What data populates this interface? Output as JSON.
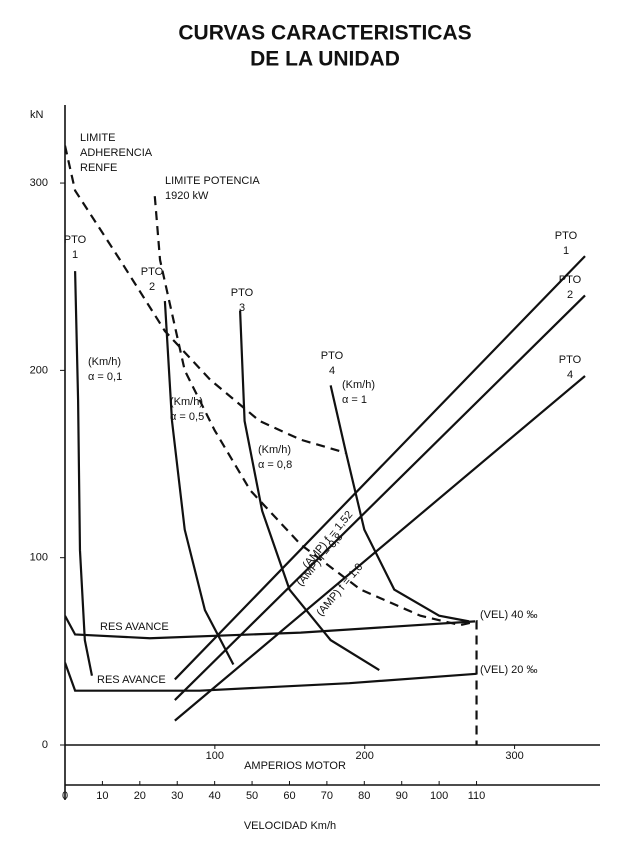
{
  "chart_data": {
    "type": "line",
    "title": [
      "CURVAS CARACTERISTICAS",
      "DE LA UNIDAD"
    ],
    "y_label": "kN",
    "x_label": "VELOCIDAD Km/h",
    "x2_label": "AMPERIOS MOTOR",
    "xlim": [
      0,
      143
    ],
    "ylim": [
      0,
      339
    ],
    "x2lim": [
      0,
      357
    ],
    "yticks": [
      0,
      100,
      200,
      300
    ],
    "xticks": [
      0,
      10,
      20,
      30,
      40,
      50,
      60,
      70,
      80,
      90,
      100,
      110
    ],
    "x2ticks": [
      100,
      200,
      300
    ],
    "series": [
      {
        "name": "LIMITE ADHERENCIA RENFE",
        "color": "#111",
        "dash": true,
        "x": [
          0,
          2.7,
          14.7,
          26.7,
          38.8,
          52,
          63,
          75
        ],
        "values": [
          320,
          296,
          259,
          221,
          195,
          173,
          163,
          156
        ]
      },
      {
        "name": "LIMITE POTENCIA 1920 kW",
        "color": "#111",
        "dash": true,
        "x": [
          24,
          25.4,
          32,
          40,
          49.5,
          63,
          79,
          95,
          105.6,
          110,
          110
        ],
        "values": [
          293,
          259,
          200,
          168,
          136,
          107,
          83,
          69,
          64,
          66,
          0
        ]
      },
      {
        "name": "PTO 1",
        "color": "#111",
        "dash": false,
        "x": [
          2.7,
          3.5,
          4,
          5.3,
          7.2
        ],
        "values": [
          253,
          184,
          104,
          56,
          37
        ]
      },
      {
        "name": "PTO 2",
        "color": "#111",
        "dash": false,
        "x": [
          26.7,
          28.6,
          32,
          37.4,
          45
        ],
        "values": [
          237,
          173,
          115,
          72,
          43
        ]
      },
      {
        "name": "PTO 3",
        "color": "#111",
        "dash": false,
        "x": [
          46.8,
          48,
          52.7,
          60,
          71,
          84
        ],
        "values": [
          232,
          173,
          125,
          83,
          56,
          40
        ]
      },
      {
        "name": "PTO 4",
        "color": "#111",
        "dash": false,
        "x": [
          71,
          75,
          80,
          88,
          100,
          108
        ],
        "values": [
          192,
          157,
          115,
          83,
          69,
          66
        ]
      },
      {
        "name": "RES AVANCE 40",
        "color": "#111",
        "dash": false,
        "x": [
          0,
          2.7,
          22.7,
          63,
          109.6
        ],
        "values": [
          69,
          59,
          57,
          60,
          66
        ]
      },
      {
        "name": "RES AVANCE 20",
        "color": "#111",
        "dash": false,
        "x": [
          0,
          2.7,
          36,
          76,
          110
        ],
        "values": [
          44,
          29,
          29,
          33,
          38
        ]
      },
      {
        "name": "AMP PTO 1",
        "color": "#111",
        "dash": false,
        "axis": "x2",
        "x": [
          73.3,
          347
        ],
        "values": [
          35,
          261
        ]
      },
      {
        "name": "AMP PTO 2",
        "color": "#111",
        "dash": false,
        "axis": "x2",
        "x": [
          73.3,
          347
        ],
        "values": [
          24,
          240
        ]
      },
      {
        "name": "AMP PTO 4",
        "color": "#111",
        "dash": false,
        "axis": "x2",
        "x": [
          73.3,
          347
        ],
        "values": [
          13,
          197
        ]
      }
    ],
    "annotations": [
      [
        "LIMITE",
        "ADHERENCIA",
        "RENFE"
      ],
      [
        "LIMITE POTENCIA",
        "1920 kW"
      ],
      [
        "PTO",
        "1"
      ],
      [
        "PTO",
        "2"
      ],
      [
        "PTO",
        "3"
      ],
      [
        "PTO",
        "4"
      ],
      [
        "(Km/h)",
        "α = 0,1"
      ],
      [
        "(Km/h)",
        "α = 0,5"
      ],
      [
        "(Km/h)",
        "α = 0,8"
      ],
      [
        "(Km/h)",
        "α = 1"
      ],
      [
        "RES AVANCE"
      ],
      [
        "RES AVANCE"
      ],
      [
        "(VEL) 40 ‰"
      ],
      [
        "(VEL) 20 ‰"
      ],
      [
        "PTO",
        "1"
      ],
      [
        "PTO",
        "2"
      ],
      [
        "PTO",
        "4"
      ],
      [
        "(AMP) f = 1,52"
      ],
      [
        "(AMP) f = 0,8"
      ],
      [
        "(AMP) f = 1,0"
      ]
    ]
  }
}
